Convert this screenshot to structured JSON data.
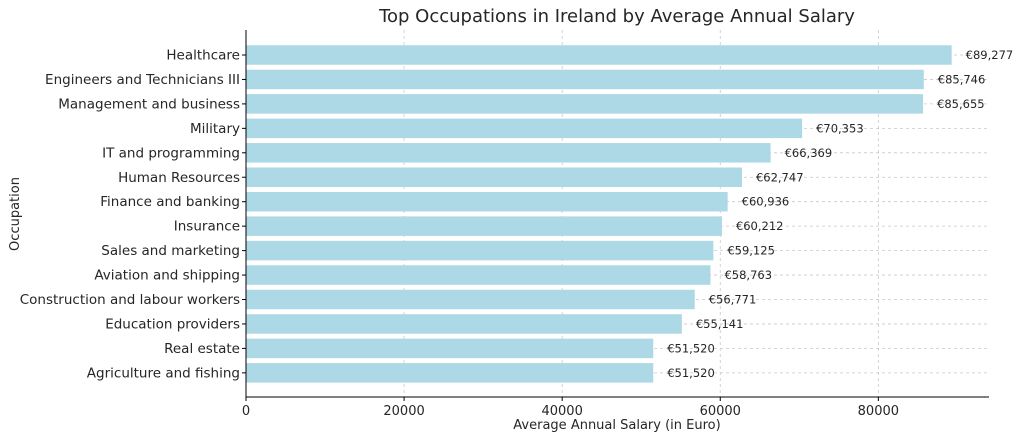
{
  "chart_data": {
    "type": "bar",
    "orientation": "horizontal",
    "title": "Top Occupations in Ireland by Average Annual Salary",
    "xlabel": "Average Annual Salary (in Euro)",
    "ylabel": "Occupation",
    "xlim": [
      0,
      94000
    ],
    "xticks": [
      0,
      20000,
      40000,
      60000,
      80000
    ],
    "xtick_labels": [
      "0",
      "20000",
      "40000",
      "60000",
      "80000"
    ],
    "grid": true,
    "bar_color": "#add8e6",
    "categories": [
      "Healthcare",
      "Engineers and Technicians III",
      "Management and business",
      "Military",
      "IT and programming",
      "Human Resources",
      "Finance and banking",
      "Insurance",
      "Sales and marketing",
      "Aviation and shipping",
      "Construction and labour workers",
      "Education providers",
      "Real estate",
      "Agriculture and fishing"
    ],
    "values": [
      89277,
      85746,
      85655,
      70353,
      66369,
      62747,
      60936,
      60212,
      59125,
      58763,
      56771,
      55141,
      51520,
      51520
    ],
    "data_labels": [
      "€89,277",
      "€85,746",
      "€85,655",
      "€70,353",
      "€66,369",
      "€62,747",
      "€60,936",
      "€60,212",
      "€59,125",
      "€58,763",
      "€56,771",
      "€55,141",
      "€51,520",
      "€51,520"
    ]
  }
}
